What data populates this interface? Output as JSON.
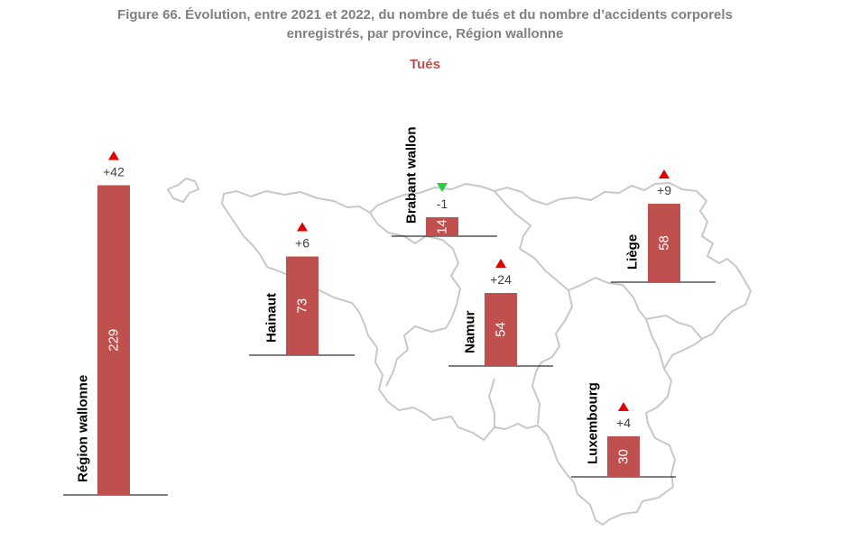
{
  "title_line1": "Figure 66. Évolution, entre 2021 et 2022, du nombre de tués et du nombre d’accidents corporels",
  "title_line2": "enregistrés, par province, Région wallonne",
  "subtitle": "Tués",
  "colors": {
    "bar": "#c0504d",
    "up": "#e00000",
    "down": "#2ecc40",
    "map": "#c8c8c8",
    "text": "#404040"
  },
  "chart_data": {
    "type": "bar",
    "title": "Figure 66. Évolution, entre 2021 et 2022, du nombre de tués et du nombre d’accidents corporels enregistrés, par province, Région wallonne",
    "subtitle": "Tués",
    "categories": [
      "Région wallonne",
      "Hainaut",
      "Brabant wallon",
      "Namur",
      "Liège",
      "Luxembourg"
    ],
    "values": [
      229,
      73,
      14,
      54,
      58,
      30
    ],
    "changes": [
      "+42",
      "+6",
      "-1",
      "+24",
      "+9",
      "+4"
    ],
    "trend": [
      "up",
      "up",
      "down",
      "up",
      "up",
      "up"
    ],
    "value_labels": [
      "229",
      "73",
      "14",
      "54",
      "58",
      "30"
    ]
  }
}
